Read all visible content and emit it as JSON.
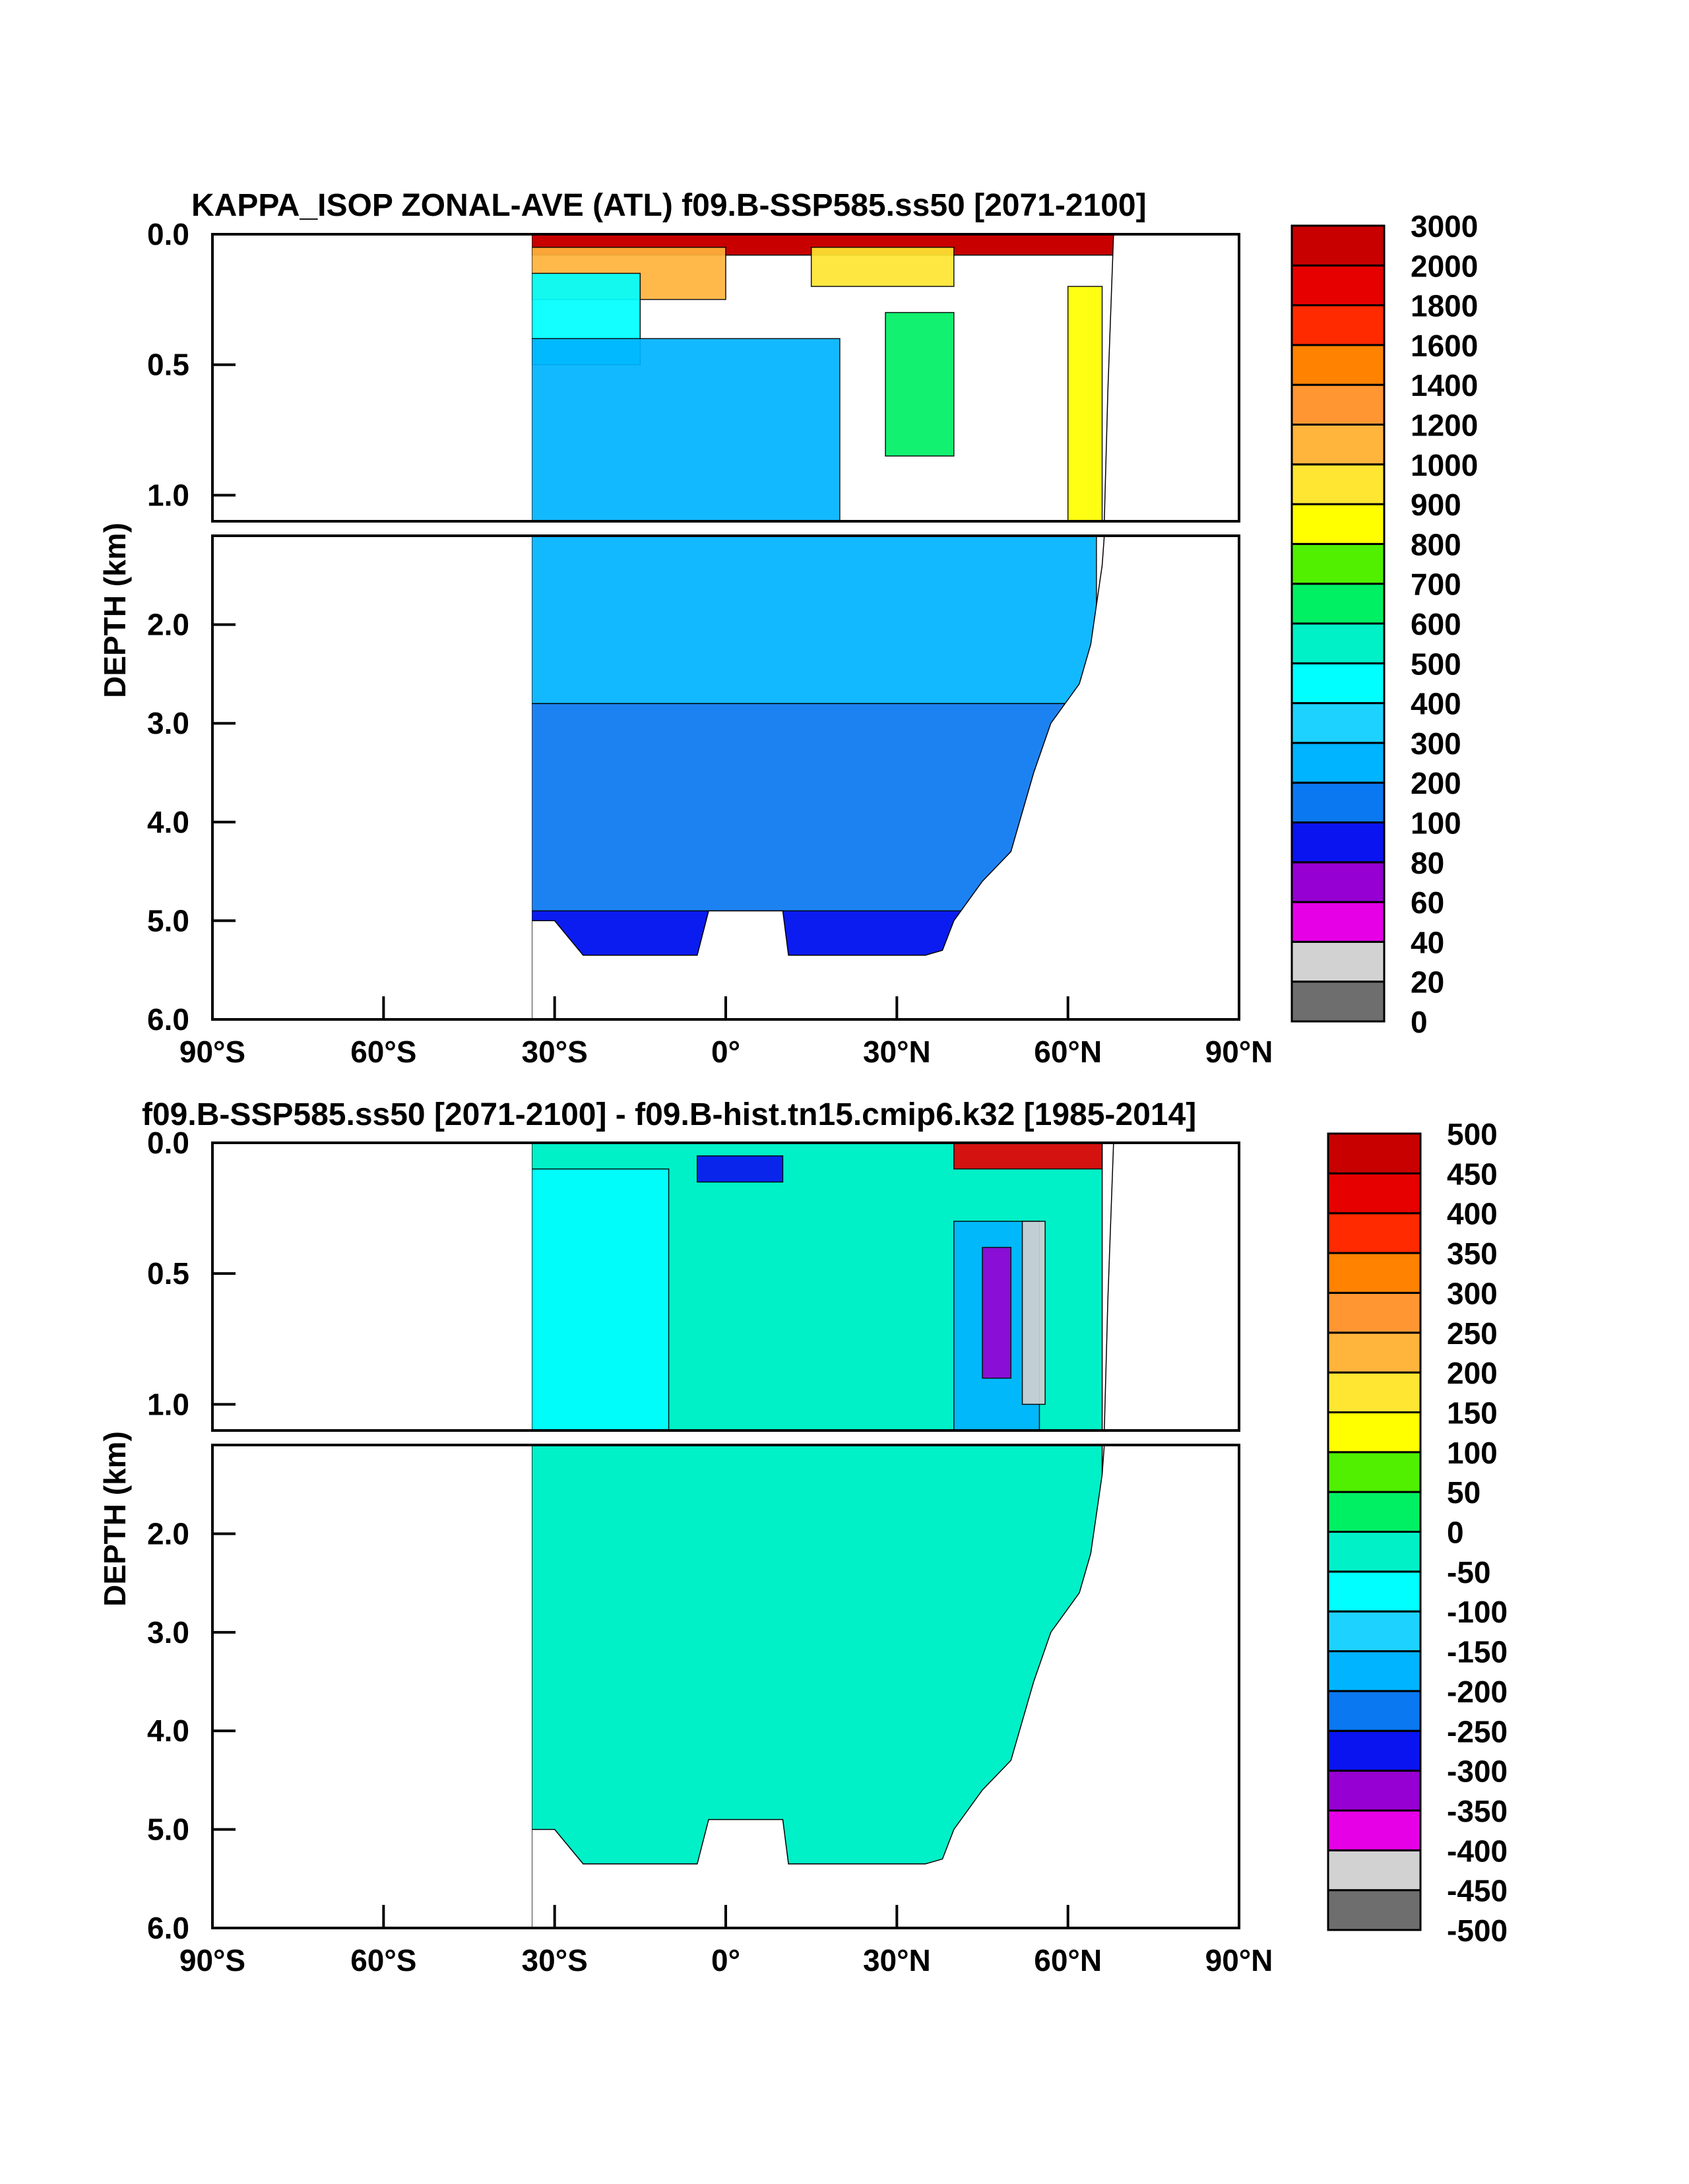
{
  "palette_levels": [
    "#6e6e6e",
    "#d2d2d2",
    "#e600e6",
    "#9600d2",
    "#0a14f0",
    "#0a78f0",
    "#00b4ff",
    "#1ed2ff",
    "#00ffff",
    "#00f0c8",
    "#00f064",
    "#50f000",
    "#ffff00",
    "#ffe632",
    "#ffb43c",
    "#ff9632",
    "#ff8200",
    "#ff2a00",
    "#e60000",
    "#c80000"
  ],
  "chart_data": [
    {
      "type": "heatmap",
      "title": "KAPPA_ISOP ZONAL-AVE (ATL) f09.B-SSP585.ss50 [2071-2100]",
      "xlabel": "",
      "ylabel": "DEPTH (km)",
      "x_ticks": [
        "90°S",
        "60°S",
        "30°S",
        "0°",
        "30°N",
        "60°N",
        "90°N"
      ],
      "x_tick_values": [
        -90,
        -60,
        -30,
        0,
        30,
        60,
        90
      ],
      "y_ticks_upper": [
        "0.0",
        "0.5",
        "1.0"
      ],
      "y_ticks_upper_values": [
        0,
        0.5,
        1.0
      ],
      "y_ticks_lower": [
        "2.0",
        "3.0",
        "4.0",
        "5.0",
        "6.0"
      ],
      "y_ticks_lower_values": [
        2,
        3,
        4,
        5,
        6
      ],
      "xlim": [
        -90,
        90
      ],
      "ylim_upper": [
        0,
        1.1
      ],
      "ylim_lower": [
        1.1,
        6.0
      ],
      "colorbar_labels": [
        "3000",
        "2000",
        "1800",
        "1600",
        "1400",
        "1200",
        "1000",
        "900",
        "800",
        "700",
        "600",
        "500",
        "400",
        "300",
        "200",
        "100",
        "80",
        "60",
        "40",
        "20",
        "0"
      ],
      "levels": [
        0,
        20,
        40,
        60,
        80,
        100,
        200,
        300,
        400,
        500,
        600,
        700,
        800,
        900,
        1000,
        1200,
        1400,
        1600,
        1800,
        2000,
        3000
      ],
      "land_mask_outline_depth_km": [
        [
          -34,
          5.0
        ],
        [
          -30,
          5.0
        ],
        [
          -25,
          5.35
        ],
        [
          -5,
          5.35
        ],
        [
          -3,
          4.9
        ],
        [
          10,
          4.9
        ],
        [
          11,
          5.35
        ],
        [
          35,
          5.35
        ],
        [
          38,
          5.3
        ],
        [
          40,
          5.0
        ],
        [
          45,
          4.6
        ],
        [
          50,
          4.3
        ],
        [
          54,
          3.5
        ],
        [
          57,
          3.0
        ],
        [
          62,
          2.6
        ],
        [
          64,
          2.2
        ],
        [
          66,
          1.4
        ],
        [
          67,
          0.6
        ],
        [
          68,
          0.0
        ]
      ],
      "approx_field": [
        {
          "lat_range": [
            -34,
            68
          ],
          "depth_range": [
            0,
            0.08
          ],
          "level": "3000"
        },
        {
          "lat_range": [
            -34,
            0
          ],
          "depth_range": [
            0.05,
            0.25
          ],
          "level": "1200"
        },
        {
          "lat_range": [
            15,
            40
          ],
          "depth_range": [
            0.05,
            0.2
          ],
          "level": "1000"
        },
        {
          "lat_range": [
            28,
            40
          ],
          "depth_range": [
            0.3,
            0.85
          ],
          "level": "700"
        },
        {
          "lat_range": [
            -34,
            -15
          ],
          "depth_range": [
            0.15,
            0.5
          ],
          "level": "500"
        },
        {
          "lat_range": [
            -34,
            20
          ],
          "depth_range": [
            0.4,
            1.1
          ],
          "level": "300"
        },
        {
          "lat_range": [
            -34,
            65
          ],
          "depth_range": [
            1.1,
            2.8
          ],
          "level": "300"
        },
        {
          "lat_range": [
            -34,
            60
          ],
          "depth_range": [
            2.8,
            5.35
          ],
          "level": "200"
        },
        {
          "lat_range": [
            -34,
            50
          ],
          "depth_range": [
            4.9,
            5.35
          ],
          "level": "100"
        },
        {
          "lat_range": [
            60,
            66
          ],
          "depth_range": [
            0.2,
            1.1
          ],
          "level": "900"
        }
      ]
    },
    {
      "type": "heatmap",
      "title": "f09.B-SSP585.ss50 [2071-2100] - f09.B-hist.tn15.cmip6.k32 [1985-2014]",
      "xlabel": "",
      "ylabel": "DEPTH (km)",
      "x_ticks": [
        "90°S",
        "60°S",
        "30°S",
        "0°",
        "30°N",
        "60°N",
        "90°N"
      ],
      "x_tick_values": [
        -90,
        -60,
        -30,
        0,
        30,
        60,
        90
      ],
      "y_ticks_upper": [
        "0.0",
        "0.5",
        "1.0"
      ],
      "y_ticks_upper_values": [
        0,
        0.5,
        1.0
      ],
      "y_ticks_lower": [
        "2.0",
        "3.0",
        "4.0",
        "5.0",
        "6.0"
      ],
      "y_ticks_lower_values": [
        2,
        3,
        4,
        5,
        6
      ],
      "xlim": [
        -90,
        90
      ],
      "ylim_upper": [
        0,
        1.1
      ],
      "ylim_lower": [
        1.1,
        6.0
      ],
      "colorbar_labels": [
        "500",
        "450",
        "400",
        "350",
        "300",
        "250",
        "200",
        "150",
        "100",
        "50",
        "0",
        "-50",
        "-100",
        "-150",
        "-200",
        "-250",
        "-300",
        "-350",
        "-400",
        "-450",
        "-500"
      ],
      "levels": [
        -500,
        -450,
        -400,
        -350,
        -300,
        -250,
        -200,
        -150,
        -100,
        -50,
        0,
        50,
        100,
        150,
        200,
        250,
        300,
        350,
        400,
        450,
        500
      ],
      "approx_field": [
        {
          "lat_range": [
            -34,
            66
          ],
          "depth_range": [
            0,
            5.35
          ],
          "level": "0"
        },
        {
          "lat_range": [
            -34,
            -10
          ],
          "depth_range": [
            0.1,
            1.1
          ],
          "level": "-50"
        },
        {
          "lat_range": [
            40,
            55
          ],
          "depth_range": [
            0.3,
            1.1
          ],
          "level": "-150"
        },
        {
          "lat_range": [
            45,
            50
          ],
          "depth_range": [
            0.4,
            0.9
          ],
          "level": "-300"
        },
        {
          "lat_range": [
            52,
            56
          ],
          "depth_range": [
            0.3,
            1.0
          ],
          "level": "-400"
        },
        {
          "lat_range": [
            40,
            66
          ],
          "depth_range": [
            0,
            0.1
          ],
          "level": "450"
        },
        {
          "lat_range": [
            -5,
            10
          ],
          "depth_range": [
            0.05,
            0.15
          ],
          "level": "-250"
        }
      ]
    }
  ]
}
